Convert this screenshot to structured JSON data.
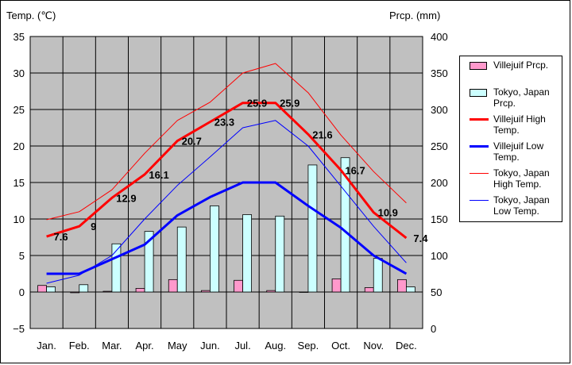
{
  "chart_data": {
    "type": "bar-line",
    "categories": [
      "Jan.",
      "Feb.",
      "Mar.",
      "Apr.",
      "May",
      "Jun.",
      "Jul.",
      "Aug.",
      "Sep.",
      "Oct.",
      "Nov.",
      "Dec."
    ],
    "ylabel_left": "Temp. (℃)",
    "ylabel_right": "Prcp. (mm)",
    "ylim_left": [
      -5,
      35
    ],
    "ylim_right": [
      0,
      400
    ],
    "left_ticks": [
      "35",
      "30",
      "25",
      "20",
      "15",
      "10",
      "5",
      "0",
      "−5"
    ],
    "right_ticks": [
      "400",
      "350",
      "300",
      "250",
      "200",
      "150",
      "100",
      "50",
      "0"
    ],
    "grid": true,
    "legend_position": "right",
    "bars": [
      {
        "name": "Villejuif Prcp.",
        "color": "#ff99cc",
        "values": [
          59,
          49,
          51,
          55,
          67,
          52,
          66,
          52,
          50,
          68,
          56,
          67
        ]
      },
      {
        "name": "Tokyo, Japan Prcp.",
        "color": "#ccffff",
        "values": [
          57,
          60,
          116,
          133,
          139,
          168,
          156,
          154,
          224,
          234,
          96,
          57
        ]
      }
    ],
    "lines": [
      {
        "name": "Villejuif High Temp.",
        "color": "#ff0000",
        "width": 3,
        "values": [
          7.6,
          9,
          12.9,
          16.1,
          20.7,
          23.3,
          25.9,
          25.9,
          21.6,
          16.7,
          10.9,
          7.4
        ],
        "labels": [
          "7.6",
          "9",
          "12.9",
          "16.1",
          "20.7",
          "23.3",
          "25.9",
          "25.9",
          "21.6",
          "16.7",
          "10.9",
          "7.4"
        ]
      },
      {
        "name": "Villejuif Low Temp.",
        "color": "#0000ff",
        "width": 3,
        "values": [
          2.5,
          2.5,
          4.5,
          6.5,
          10.5,
          13,
          15,
          15,
          11.8,
          8.8,
          5,
          2.5
        ]
      },
      {
        "name": "Tokyo, Japan High Temp.",
        "color": "#ff0000",
        "width": 1,
        "values": [
          9.9,
          11,
          14,
          19,
          23.5,
          26,
          30,
          31.3,
          27.3,
          21.5,
          16.5,
          12.2
        ]
      },
      {
        "name": "Tokyo, Japan Low Temp.",
        "color": "#0000ff",
        "width": 1,
        "values": [
          1.2,
          2.3,
          5,
          10,
          14.6,
          18.5,
          22.5,
          23.5,
          20,
          14.5,
          9,
          4
        ]
      }
    ]
  },
  "legend": {
    "items": [
      {
        "label": "Villejuif Prcp."
      },
      {
        "label": "Tokyo, Japan Prcp."
      },
      {
        "label": "Villejuif High Temp."
      },
      {
        "label": "Villejuif Low Temp."
      },
      {
        "label": "Tokyo, Japan High Temp."
      },
      {
        "label": "Tokyo, Japan Low Temp."
      }
    ]
  },
  "colors": {
    "plot_bg": "#c0c0c0",
    "grid": "#000000"
  }
}
